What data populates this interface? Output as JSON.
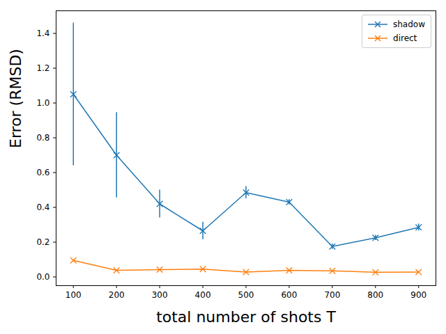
{
  "chart_data": {
    "type": "line",
    "x_label": "total number of shots T",
    "y_label": "Error (RMSD)",
    "x": [
      100,
      200,
      300,
      400,
      500,
      600,
      700,
      800,
      900
    ],
    "series": [
      {
        "name": "shadow",
        "color": "#1f77b4",
        "marker": "x",
        "values": [
          1.05,
          0.7,
          0.42,
          0.265,
          0.485,
          0.43,
          0.175,
          0.225,
          0.285
        ],
        "errors": [
          0.41,
          0.245,
          0.08,
          0.05,
          0.035,
          0.015,
          0.015,
          0.015,
          0.02
        ]
      },
      {
        "name": "direct",
        "color": "#ff7f0e",
        "marker": "x",
        "values": [
          0.095,
          0.038,
          0.042,
          0.045,
          0.028,
          0.038,
          0.035,
          0.027,
          0.028
        ]
      }
    ],
    "xlim": [
      60,
      940
    ],
    "ylim": [
      -0.05,
      1.53
    ],
    "xticks": [
      100,
      200,
      300,
      400,
      500,
      600,
      700,
      800,
      900
    ],
    "yticks": [
      {
        "value": 0,
        "label": "0.0"
      },
      0.2,
      0.4,
      0.6,
      0.8,
      {
        "value": 1,
        "label": "1.0"
      },
      1.2,
      1.4
    ],
    "legend": "upper right",
    "grid": false
  }
}
